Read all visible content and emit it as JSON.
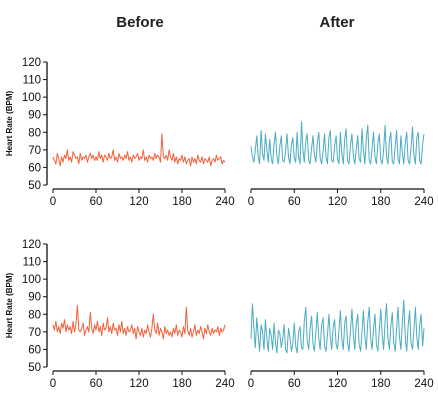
{
  "column_titles": [
    "Before",
    "After"
  ],
  "colors": {
    "before": "#f2603a",
    "after": "#4aabc2",
    "axis": "#111111"
  },
  "chart_data": [
    {
      "type": "line",
      "row": 1,
      "column": "Before",
      "ylabel": "Heart Rate (BPM)",
      "ylim": [
        50,
        120
      ],
      "xlim": [
        0,
        240
      ],
      "yticks": [
        50,
        60,
        70,
        80,
        90,
        100,
        110,
        120
      ],
      "xticks": [
        0,
        60,
        120,
        180,
        240
      ],
      "x_step": 2,
      "values": [
        66,
        64,
        62,
        68,
        65,
        61,
        66,
        63,
        67,
        65,
        70,
        64,
        66,
        63,
        69,
        67,
        65,
        66,
        62,
        68,
        64,
        66,
        65,
        67,
        63,
        66,
        68,
        65,
        67,
        64,
        66,
        64,
        69,
        65,
        67,
        63,
        67,
        66,
        64,
        68,
        65,
        66,
        70,
        64,
        66,
        63,
        68,
        65,
        66,
        64,
        67,
        65,
        69,
        64,
        66,
        63,
        67,
        65,
        66,
        68,
        64,
        66,
        65,
        70,
        64,
        66,
        63,
        67,
        65,
        66,
        64,
        68,
        65,
        67,
        66,
        63,
        79,
        66,
        65,
        67,
        64,
        70,
        66,
        64,
        68,
        63,
        66,
        62,
        65,
        64,
        67,
        63,
        66,
        62,
        64,
        65,
        61,
        66,
        63,
        65,
        62,
        67,
        64,
        63,
        66,
        62,
        65,
        64,
        63,
        66,
        61,
        64,
        65,
        63,
        67,
        64,
        65,
        66,
        62,
        64,
        63
      ]
    },
    {
      "type": "line",
      "row": 1,
      "column": "After",
      "ylabel": "",
      "ylim": [
        50,
        120
      ],
      "xlim": [
        0,
        240
      ],
      "yticks": [],
      "xticks": [
        0,
        60,
        120,
        180,
        240
      ],
      "x_step": 2,
      "values": [
        72,
        66,
        63,
        70,
        78,
        66,
        62,
        81,
        68,
        64,
        79,
        70,
        63,
        76,
        65,
        62,
        74,
        80,
        66,
        62,
        72,
        78,
        64,
        63,
        70,
        79,
        66,
        62,
        73,
        77,
        65,
        63,
        80,
        66,
        62,
        86,
        70,
        63,
        75,
        79,
        64,
        62,
        71,
        78,
        67,
        63,
        74,
        80,
        65,
        62,
        69,
        79,
        66,
        62,
        77,
        81,
        64,
        63,
        72,
        78,
        65,
        62,
        80,
        68,
        62,
        76,
        82,
        64,
        62,
        73,
        79,
        66,
        62,
        70,
        78,
        65,
        63,
        82,
        70,
        62,
        76,
        84,
        64,
        62,
        71,
        80,
        66,
        62,
        74,
        79,
        64,
        62,
        70,
        84,
        66,
        62,
        75,
        80,
        63,
        62,
        72,
        81,
        65,
        62,
        78,
        68,
        62,
        74,
        80,
        64,
        62,
        71,
        83,
        67,
        62,
        77,
        80,
        64,
        62,
        73,
        79
      ]
    },
    {
      "type": "line",
      "row": 2,
      "column": "Before",
      "ylabel": "Heart Rate (BPM)",
      "ylim": [
        50,
        120
      ],
      "xlim": [
        0,
        240
      ],
      "yticks": [
        50,
        60,
        70,
        80,
        90,
        100,
        110,
        120
      ],
      "xticks": [
        0,
        60,
        120,
        180,
        240
      ],
      "x_step": 2,
      "values": [
        74,
        71,
        76,
        70,
        73,
        69,
        75,
        72,
        77,
        70,
        74,
        71,
        73,
        69,
        76,
        70,
        74,
        85,
        71,
        70,
        72,
        75,
        68,
        71,
        73,
        70,
        81,
        72,
        69,
        74,
        71,
        76,
        70,
        73,
        68,
        75,
        71,
        72,
        78,
        70,
        73,
        69,
        75,
        71,
        72,
        68,
        74,
        70,
        76,
        69,
        72,
        68,
        73,
        70,
        71,
        74,
        69,
        72,
        66,
        73,
        70,
        68,
        72,
        67,
        71,
        69,
        74,
        70,
        67,
        72,
        80,
        71,
        69,
        75,
        68,
        72,
        70,
        66,
        73,
        69,
        71,
        68,
        70,
        67,
        72,
        69,
        74,
        68,
        71,
        70,
        67,
        73,
        69,
        84,
        71,
        68,
        72,
        67,
        70,
        74,
        68,
        71,
        69,
        73,
        70,
        66,
        72,
        69,
        74,
        70,
        68,
        72,
        69,
        71,
        70,
        73,
        68,
        72,
        70,
        71,
        74
      ]
    },
    {
      "type": "line",
      "row": 2,
      "column": "After",
      "ylabel": "",
      "ylim": [
        50,
        120
      ],
      "xlim": [
        0,
        240
      ],
      "yticks": [],
      "xticks": [
        0,
        60,
        120,
        180,
        240
      ],
      "x_step": 2,
      "values": [
        66,
        86,
        72,
        61,
        78,
        68,
        59,
        74,
        70,
        60,
        77,
        66,
        59,
        72,
        68,
        60,
        75,
        64,
        58,
        71,
        69,
        61,
        66,
        74,
        60,
        58,
        72,
        67,
        59,
        63,
        75,
        62,
        58,
        70,
        73,
        61,
        60,
        76,
        84,
        65,
        60,
        72,
        79,
        63,
        59,
        70,
        81,
        66,
        60,
        74,
        78,
        62,
        59,
        68,
        80,
        67,
        60,
        73,
        77,
        63,
        60,
        70,
        82,
        66,
        60,
        75,
        79,
        64,
        59,
        71,
        83,
        68,
        60,
        74,
        80,
        63,
        59,
        70,
        82,
        67,
        60,
        76,
        84,
        66,
        60,
        72,
        80,
        63,
        59,
        71,
        83,
        68,
        60,
        76,
        86,
        66,
        60,
        73,
        81,
        64,
        59,
        72,
        84,
        67,
        60,
        76,
        88,
        66,
        59,
        73,
        82,
        64,
        60,
        71,
        84,
        67,
        60,
        74,
        80,
        62,
        72
      ]
    }
  ]
}
